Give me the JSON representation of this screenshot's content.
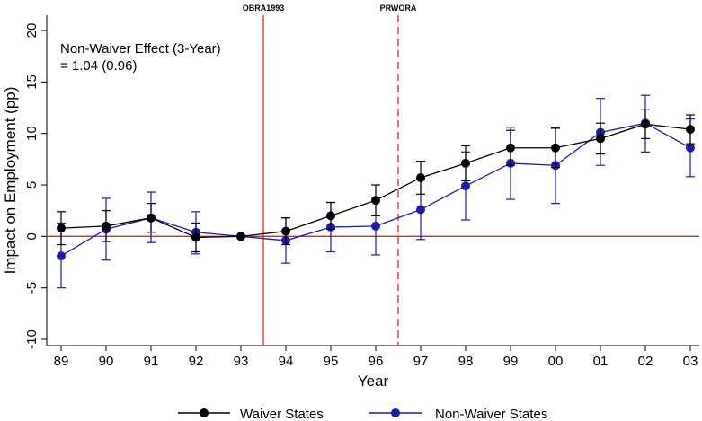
{
  "chart_data": {
    "type": "line",
    "x": [
      "89",
      "90",
      "91",
      "92",
      "93",
      "94",
      "95",
      "96",
      "97",
      "98",
      "99",
      "00",
      "01",
      "02",
      "03"
    ],
    "xlabel": "Year",
    "ylabel": "Impact on Employment (pp)",
    "ylim": [
      -10,
      20
    ],
    "yticks": [
      -10,
      -5,
      0,
      5,
      10,
      15,
      20
    ],
    "grid": false,
    "legend_position": "bottom",
    "annotation": [
      "Non-Waiver Effect (3-Year)",
      "= 1.04 (0.96)"
    ],
    "reference_lines": [
      {
        "label": "OBRA1993",
        "x": 93.5,
        "style": "solid",
        "color": "#e8211d"
      },
      {
        "label": "PRWORA",
        "x": 96.5,
        "style": "dashed",
        "color": "#e8211d"
      }
    ],
    "zero_line_color": "#e8211d",
    "series": [
      {
        "name": "Waiver States",
        "color": "#000000",
        "values": [
          0.8,
          1.0,
          1.8,
          -0.1,
          0.0,
          0.5,
          2.0,
          3.5,
          5.7,
          7.1,
          8.6,
          8.6,
          9.5,
          10.9,
          10.4
        ],
        "ci_low": [
          -0.8,
          -0.5,
          0.4,
          -1.5,
          0.0,
          -0.8,
          0.7,
          2.0,
          4.1,
          5.4,
          6.9,
          6.7,
          8.0,
          9.5,
          9.0
        ],
        "ci_high": [
          2.4,
          2.5,
          3.2,
          1.3,
          0.0,
          1.8,
          3.3,
          5.0,
          7.3,
          8.8,
          10.3,
          10.5,
          11.0,
          12.3,
          11.8
        ]
      },
      {
        "name": "Non-Waiver States",
        "color": "#1c1ca8",
        "values": [
          -1.9,
          0.7,
          1.8,
          0.4,
          0.0,
          -0.4,
          0.9,
          1.0,
          2.6,
          4.9,
          7.1,
          6.9,
          10.1,
          11.0,
          8.6
        ],
        "ci_low": [
          -5.0,
          -2.3,
          -0.6,
          -1.7,
          0.0,
          -2.6,
          -1.5,
          -1.8,
          -0.3,
          1.6,
          3.6,
          3.2,
          6.9,
          8.2,
          5.8
        ],
        "ci_high": [
          1.3,
          3.7,
          4.3,
          2.4,
          0.0,
          1.8,
          3.3,
          3.8,
          5.5,
          8.2,
          10.6,
          10.6,
          13.4,
          13.7,
          11.4
        ]
      }
    ]
  }
}
